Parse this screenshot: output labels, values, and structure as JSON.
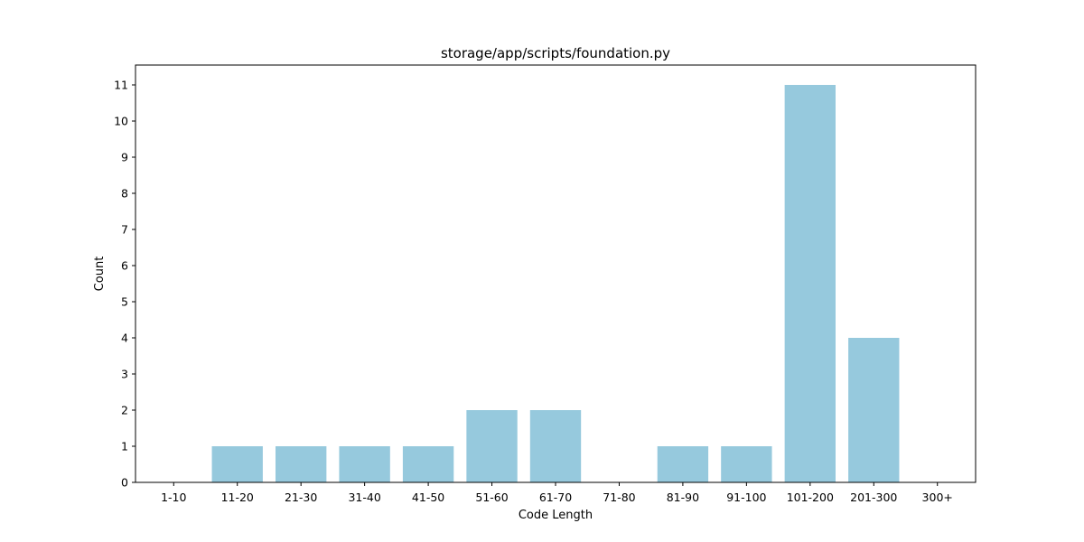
{
  "chart_data": {
    "type": "bar",
    "title": "storage/app/scripts/foundation.py",
    "xlabel": "Code Length",
    "ylabel": "Count",
    "categories": [
      "1-10",
      "11-20",
      "21-30",
      "31-40",
      "41-50",
      "51-60",
      "61-70",
      "71-80",
      "81-90",
      "91-100",
      "101-200",
      "201-300",
      "300+"
    ],
    "values": [
      0,
      1,
      1,
      1,
      1,
      2,
      2,
      0,
      1,
      1,
      11,
      4,
      0
    ],
    "yticks": [
      0,
      1,
      2,
      3,
      4,
      5,
      6,
      7,
      8,
      9,
      10,
      11
    ],
    "ylim": [
      0,
      11.55
    ],
    "grid": false,
    "bar_color": "#96c9dd"
  }
}
